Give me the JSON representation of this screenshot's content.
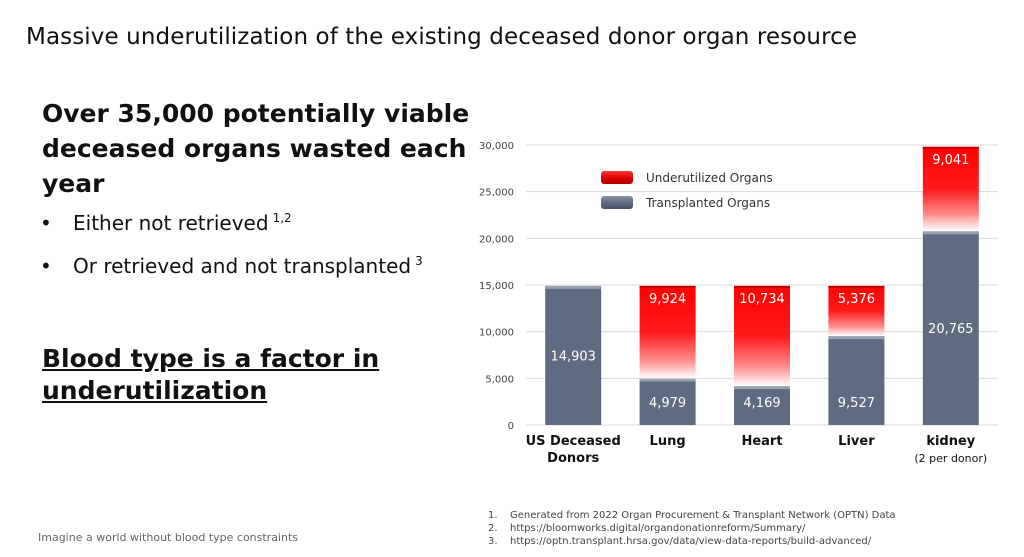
{
  "slide": {
    "title": "Massive underutilization of the existing deceased donor organ resource",
    "headline": "Over 35,000 potentially viable deceased organs wasted each year",
    "bullets": [
      {
        "text": "Either not retrieved",
        "sup": "1,2"
      },
      {
        "text": "Or retrieved and not transplanted",
        "sup": "3"
      }
    ],
    "bullet_glyph": "•",
    "factor_text": "Blood type is a factor in underutilization",
    "footer_tagline": "Imagine a world without blood type constraints",
    "references": [
      {
        "num": "1.",
        "text": "Generated from  2022 Organ Procurement & Transplant Network (OPTN) Data"
      },
      {
        "num": "2.",
        "text": "https://bloomworks.digital/organdonationreform/Summary/"
      },
      {
        "num": "3.",
        "text": "https://optn.transplant.hrsa.gov/data/view-data-reports/build-advanced/"
      }
    ]
  },
  "chart_data": {
    "type": "bar",
    "stacked": true,
    "categories": [
      "US Deceased Donors",
      "Lung",
      "Heart",
      "Liver",
      "kidney"
    ],
    "category_labels": [
      [
        "US Deceased",
        "Donors"
      ],
      [
        "Lung"
      ],
      [
        "Heart"
      ],
      [
        "Liver"
      ],
      [
        "kidney",
        "(2 per donor)"
      ]
    ],
    "series": [
      {
        "name": "Transplanted Organs",
        "values": [
          14903,
          4979,
          4169,
          9527,
          20765
        ],
        "labels": [
          "14,903",
          "4,979",
          "4,169",
          "9,527",
          "20,765"
        ],
        "color": "#5f6b80"
      },
      {
        "name": "Underutilized Organs",
        "values": [
          0,
          9924,
          10734,
          5376,
          9041
        ],
        "labels": [
          "",
          "9,924",
          "10,734",
          "5,376",
          "9,041"
        ],
        "color": "#ff0000"
      }
    ],
    "ylim": [
      0,
      30000
    ],
    "yticks": [
      0,
      5000,
      10000,
      15000,
      20000,
      25000,
      30000
    ],
    "ytick_labels": [
      "0",
      "5,000",
      "10,000",
      "15,000",
      "20,000",
      "25,000",
      "30,000"
    ],
    "grid": true,
    "legend_position": "top-left"
  }
}
